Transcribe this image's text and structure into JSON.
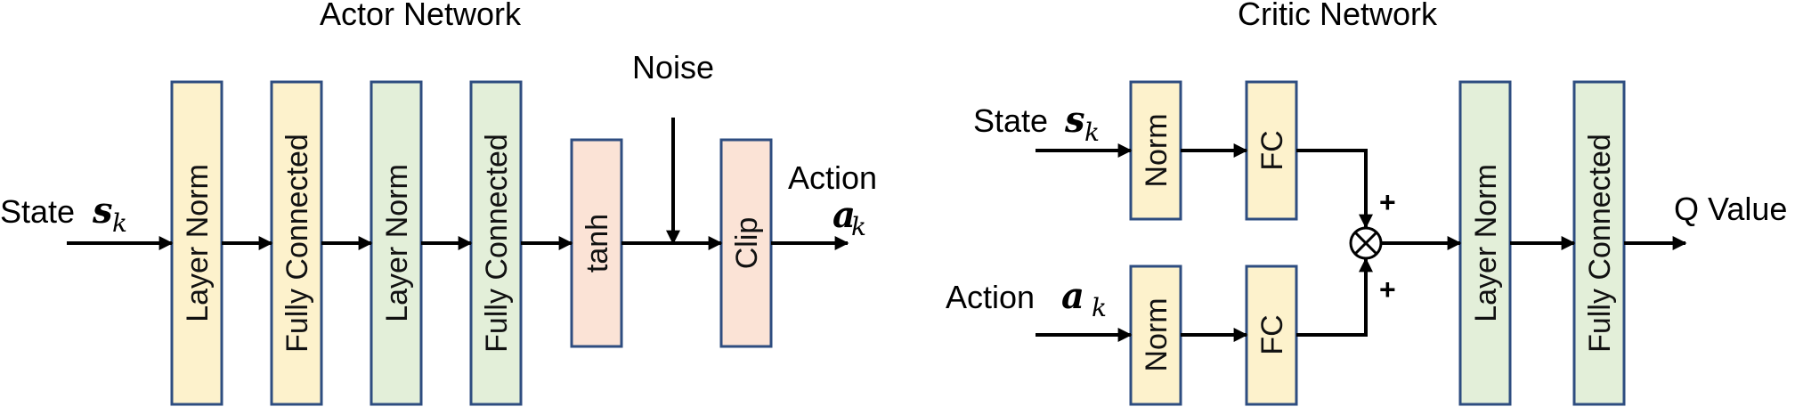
{
  "actor": {
    "title": "Actor Network",
    "state_label": "State",
    "state_symbol": "s",
    "state_subscript": "k",
    "blocks": [
      "Layer Norm",
      "Fully Connected",
      "Layer Norm",
      "Fully Connected",
      "tanh",
      "Clip"
    ],
    "noise_label": "Noise",
    "action_label": "Action",
    "action_symbol": "a",
    "action_subscript": "k"
  },
  "critic": {
    "title": "Critic Network",
    "state_label": "State",
    "state_symbol": "s",
    "state_subscript": "k",
    "action_label": "Action",
    "action_symbol": "a",
    "action_subscript": "k",
    "blocks": [
      "Norm",
      "FC",
      "Norm",
      "FC",
      "Layer Norm",
      "Fully Connected"
    ],
    "plus_top": "+",
    "plus_bottom": "+",
    "output_label": "Q Value"
  },
  "colors": {
    "yellow_fill": "#fdf2cc",
    "green_fill": "#e3efd9",
    "pink_fill": "#fbe3d6",
    "border": "#2e4d80",
    "wire": "#000000"
  }
}
